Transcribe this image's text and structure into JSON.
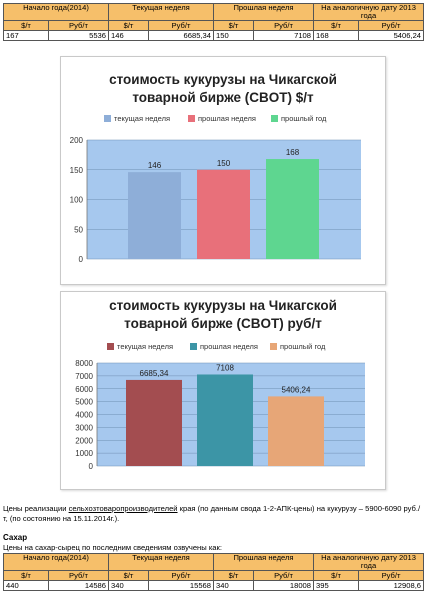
{
  "corn_table": {
    "headers": [
      "Начало года(2014)",
      "Текущая неделя",
      "Прошлая неделя",
      "На аналогичную дату 2013 года"
    ],
    "units": [
      "$/т",
      "Руб/т",
      "$/т",
      "Руб/т",
      "$/т",
      "Руб/т",
      "$/т",
      "Руб/т"
    ],
    "values": [
      "167",
      "5536",
      "146",
      "6685,34",
      "150",
      "7108",
      "168",
      "5406,24"
    ]
  },
  "chart_usd": {
    "title_line1": "стоимость кукурузы на Чикагской",
    "title_line2": "товарной бирже (CBOT) $/т",
    "legend": [
      "текущая неделя",
      "прошлая неделя",
      "прошлый год"
    ],
    "colors": [
      "#8eaed8",
      "#e8707a",
      "#5ed690"
    ],
    "plot_bg": "#a6c8ee",
    "ticks": [
      "0",
      "50",
      "100",
      "150",
      "200"
    ]
  },
  "chart_rub": {
    "title_line1": "стоимость кукурузы на Чикагской",
    "title_line2": "товарной бирже (CBOT) руб/т",
    "legend": [
      "текущая неделя",
      "прошлая неделя",
      "прошлый год"
    ],
    "colors": [
      "#a34d50",
      "#3c95a6",
      "#e7a677"
    ],
    "plot_bg": "#a6c8ee",
    "ticks": [
      "0",
      "1000",
      "2000",
      "3000",
      "4000",
      "5000",
      "6000",
      "7000",
      "8000"
    ]
  },
  "chart_data": [
    {
      "type": "bar",
      "title": "стоимость кукурузы на Чикагской товарной бирже (CBOT) $/т",
      "categories": [
        "текущая неделя",
        "прошлая неделя",
        "прошлый год"
      ],
      "values": [
        146,
        150,
        168
      ],
      "value_labels": [
        "146",
        "150",
        "168"
      ],
      "ylim": [
        0,
        200
      ],
      "yticks": [
        0,
        50,
        100,
        150,
        200
      ],
      "legend": "top",
      "grid": true
    },
    {
      "type": "bar",
      "title": "стоимость кукурузы на Чикагской товарной бирже (CBOT) руб/т",
      "categories": [
        "текущая неделя",
        "прошлая неделя",
        "прошлый год"
      ],
      "values": [
        6685.34,
        7108,
        5406.24
      ],
      "value_labels": [
        "6685,34",
        "7108",
        "5406,24"
      ],
      "ylim": [
        0,
        8000
      ],
      "yticks": [
        0,
        1000,
        2000,
        3000,
        4000,
        5000,
        6000,
        7000,
        8000
      ],
      "legend": "top",
      "grid": true
    }
  ],
  "paragraph": {
    "prefix": "Цены реализации ",
    "link": "сельхозтоваропроизводителей",
    "rest": " края (по данным свода 1-2-АПК-цены) на кукурузу – 5900-6090 руб./т, (по состоянию на 15.11.2014г.)."
  },
  "sugar": {
    "title": "Сахар",
    "intro": "Цены на сахар-сырец по последним сведениям озвучены как:"
  },
  "sugar_table": {
    "headers": [
      "Начало года(2014)",
      "Текущая неделя",
      "Прошлая неделя",
      "На аналогичную дату 2013 года"
    ],
    "units": [
      "$/т",
      "Руб/т",
      "$/т",
      "Руб/т",
      "$/т",
      "Руб/т",
      "$/т",
      "Руб/т"
    ],
    "values": [
      "440",
      "14586",
      "340",
      "15568",
      "340",
      "18008",
      "395",
      "12908,6"
    ]
  }
}
